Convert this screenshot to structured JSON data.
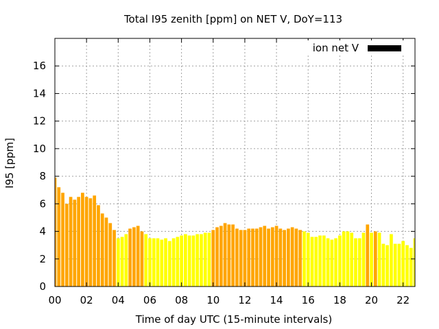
{
  "chart_data": {
    "type": "bar",
    "title": "Total I95 zenith [ppm] on NET V, DoY=113",
    "xlabel": "Time of day UTC (15-minute intervals)",
    "ylabel": "I95 [ppm]",
    "legend": {
      "label": "ion net V",
      "position": "top-right",
      "swatch_color": "#000000"
    },
    "xlim": [
      0,
      22.75
    ],
    "ylim": [
      0,
      18
    ],
    "grid": true,
    "interval_hours": 0.25,
    "x_ticks": [
      "00",
      "02",
      "04",
      "06",
      "08",
      "10",
      "12",
      "14",
      "16",
      "18",
      "20",
      "22"
    ],
    "y_ticks": [
      "0",
      "2",
      "4",
      "6",
      "8",
      "10",
      "12",
      "14",
      "16"
    ],
    "colors": {
      "orange": "#ffa500",
      "yellow": "#ffff00",
      "axis": "#000000",
      "grid": "#a0a0a0"
    },
    "values": [
      7.9,
      7.2,
      6.8,
      6.0,
      6.5,
      6.3,
      6.5,
      6.8,
      6.5,
      6.4,
      6.6,
      5.9,
      5.3,
      5.0,
      4.6,
      4.1,
      3.5,
      3.6,
      3.8,
      4.2,
      4.3,
      4.4,
      4.0,
      3.8,
      3.5,
      3.5,
      3.5,
      3.4,
      3.5,
      3.3,
      3.5,
      3.6,
      3.7,
      3.8,
      3.7,
      3.7,
      3.8,
      3.8,
      3.9,
      3.9,
      4.1,
      4.3,
      4.4,
      4.6,
      4.5,
      4.5,
      4.2,
      4.1,
      4.1,
      4.2,
      4.2,
      4.2,
      4.3,
      4.4,
      4.2,
      4.3,
      4.4,
      4.2,
      4.1,
      4.2,
      4.3,
      4.2,
      4.1,
      4.0,
      3.9,
      3.6,
      3.6,
      3.7,
      3.7,
      3.5,
      3.4,
      3.5,
      3.7,
      4.0,
      4.0,
      3.9,
      3.5,
      3.5,
      3.9,
      4.5,
      3.9,
      4.0,
      3.9,
      3.1,
      3.0,
      3.8,
      3.1,
      3.1,
      3.3,
      3.0,
      2.8,
      3.5
    ],
    "bar_colors": [
      "orange",
      "orange",
      "orange",
      "orange",
      "orange",
      "orange",
      "orange",
      "orange",
      "orange",
      "orange",
      "orange",
      "orange",
      "orange",
      "orange",
      "orange",
      "orange",
      "yellow",
      "yellow",
      "yellow",
      "orange",
      "orange",
      "orange",
      "orange",
      "yellow",
      "yellow",
      "yellow",
      "yellow",
      "yellow",
      "yellow",
      "yellow",
      "yellow",
      "yellow",
      "yellow",
      "yellow",
      "yellow",
      "yellow",
      "yellow",
      "yellow",
      "yellow",
      "yellow",
      "orange",
      "orange",
      "orange",
      "orange",
      "orange",
      "orange",
      "orange",
      "orange",
      "orange",
      "orange",
      "orange",
      "orange",
      "orange",
      "orange",
      "orange",
      "orange",
      "orange",
      "orange",
      "orange",
      "orange",
      "orange",
      "orange",
      "orange",
      "yellow",
      "yellow",
      "yellow",
      "yellow",
      "yellow",
      "yellow",
      "yellow",
      "yellow",
      "yellow",
      "yellow",
      "yellow",
      "yellow",
      "yellow",
      "yellow",
      "yellow",
      "yellow",
      "orange",
      "yellow",
      "orange",
      "yellow",
      "yellow",
      "yellow",
      "yellow",
      "yellow",
      "yellow",
      "yellow",
      "yellow",
      "yellow",
      "yellow"
    ]
  }
}
